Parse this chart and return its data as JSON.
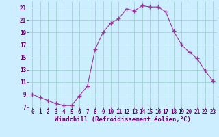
{
  "xlabel": "Windchill (Refroidissement éolien,°C)",
  "x": [
    0,
    1,
    2,
    3,
    4,
    5,
    6,
    7,
    8,
    9,
    10,
    11,
    12,
    13,
    14,
    15,
    16,
    17,
    18,
    19,
    20,
    21,
    22,
    23
  ],
  "y": [
    9.0,
    8.5,
    8.0,
    7.5,
    7.2,
    7.2,
    8.8,
    10.3,
    16.3,
    19.0,
    20.5,
    21.2,
    22.8,
    22.5,
    23.3,
    23.1,
    23.1,
    22.3,
    19.2,
    17.0,
    15.8,
    14.8,
    12.8,
    11.2
  ],
  "line_color": "#993399",
  "marker": "+",
  "marker_size": 4,
  "bg_color": "#cceeff",
  "grid_color": "#99cccc",
  "ylim": [
    7,
    24
  ],
  "yticks": [
    7,
    9,
    11,
    13,
    15,
    17,
    19,
    21,
    23
  ],
  "xlim": [
    -0.5,
    23.5
  ],
  "xticks": [
    0,
    1,
    2,
    3,
    4,
    5,
    6,
    7,
    8,
    9,
    10,
    11,
    12,
    13,
    14,
    15,
    16,
    17,
    18,
    19,
    20,
    21,
    22,
    23
  ],
  "tick_label_fontsize": 5.5,
  "xlabel_fontsize": 6.5,
  "axis_label_color": "#660066"
}
